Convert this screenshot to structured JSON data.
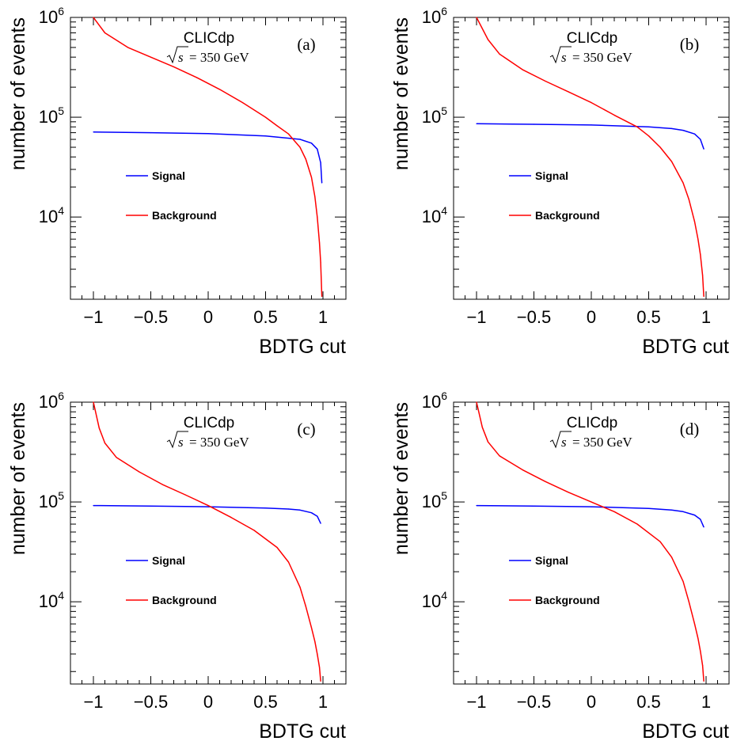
{
  "colors": {
    "signal": "#0000ff",
    "background": "#ff0000",
    "axis": "#000000"
  },
  "chart_data": [
    {
      "type": "line",
      "panel_label": "(a)",
      "experiment": "CLICdp",
      "energy_text": "= 350 GeV",
      "xlabel": "BDTG cut",
      "ylabel": "number of events",
      "xticks": [
        "−1",
        "−0.5",
        "0",
        "0.5",
        "1"
      ],
      "xlim": [
        -1.2,
        1.2
      ],
      "ylim": [
        1500,
        1000000
      ],
      "yscale": "log",
      "legend": [
        "Signal",
        "Background"
      ],
      "series": [
        {
          "name": "Signal",
          "x": [
            -1,
            -0.5,
            0,
            0.5,
            0.8,
            0.9,
            0.95,
            0.98,
            0.99
          ],
          "y": [
            71000,
            70000,
            68500,
            65000,
            60000,
            55000,
            48000,
            35000,
            22000
          ]
        },
        {
          "name": "Background",
          "x": [
            -1,
            -0.9,
            -0.7,
            -0.5,
            -0.3,
            -0.1,
            0.1,
            0.3,
            0.5,
            0.6,
            0.7,
            0.8,
            0.85,
            0.9,
            0.93,
            0.95,
            0.97,
            0.98,
            0.99
          ],
          "y": [
            1000000,
            700000,
            500000,
            400000,
            320000,
            250000,
            190000,
            140000,
            100000,
            82000,
            68000,
            50000,
            38000,
            25000,
            16000,
            10000,
            5500,
            3500,
            1600
          ]
        }
      ]
    },
    {
      "type": "line",
      "panel_label": "(b)",
      "experiment": "CLICdp",
      "energy_text": "= 350 GeV",
      "xlabel": "BDTG cut",
      "ylabel": "number of events",
      "xticks": [
        "−1",
        "−0.5",
        "0",
        "0.5",
        "1"
      ],
      "xlim": [
        -1.2,
        1.2
      ],
      "ylim": [
        1500,
        1000000
      ],
      "yscale": "log",
      "legend": [
        "Signal",
        "Background"
      ],
      "series": [
        {
          "name": "Signal",
          "x": [
            -1,
            -0.5,
            0,
            0.5,
            0.7,
            0.8,
            0.9,
            0.95,
            0.98
          ],
          "y": [
            86000,
            85000,
            83500,
            80000,
            77000,
            74000,
            68000,
            60000,
            48000
          ]
        },
        {
          "name": "Background",
          "x": [
            -1,
            -0.9,
            -0.8,
            -0.6,
            -0.4,
            -0.2,
            0,
            0.2,
            0.4,
            0.5,
            0.6,
            0.7,
            0.8,
            0.85,
            0.9,
            0.93,
            0.95,
            0.97,
            0.98
          ],
          "y": [
            1000000,
            600000,
            430000,
            300000,
            230000,
            180000,
            140000,
            105000,
            80000,
            65000,
            50000,
            36000,
            22000,
            15000,
            9000,
            6000,
            4200,
            2600,
            1600
          ]
        }
      ]
    },
    {
      "type": "line",
      "panel_label": "(c)",
      "experiment": "CLICdp",
      "energy_text": "= 350 GeV",
      "xlabel": "BDTG cut",
      "ylabel": "number of events",
      "xticks": [
        "−1",
        "−0.5",
        "0",
        "0.5",
        "1"
      ],
      "xlim": [
        -1.2,
        1.2
      ],
      "ylim": [
        1500,
        1000000
      ],
      "yscale": "log",
      "legend": [
        "Signal",
        "Background"
      ],
      "series": [
        {
          "name": "Signal",
          "x": [
            -1,
            -0.5,
            0,
            0.5,
            0.7,
            0.8,
            0.9,
            0.95,
            0.98
          ],
          "y": [
            92000,
            91000,
            89500,
            87000,
            85000,
            83000,
            78000,
            72000,
            61000
          ]
        },
        {
          "name": "Background",
          "x": [
            -1,
            -0.95,
            -0.9,
            -0.8,
            -0.6,
            -0.4,
            -0.2,
            0,
            0.2,
            0.4,
            0.6,
            0.7,
            0.8,
            0.85,
            0.9,
            0.93,
            0.95,
            0.97,
            0.98
          ],
          "y": [
            1000000,
            550000,
            390000,
            280000,
            200000,
            150000,
            118000,
            92000,
            70000,
            52000,
            35000,
            25000,
            14000,
            9000,
            5500,
            4000,
            3000,
            2200,
            1600
          ]
        }
      ]
    },
    {
      "type": "line",
      "panel_label": "(d)",
      "experiment": "CLICdp",
      "energy_text": "= 350 GeV",
      "xlabel": "BDTG cut",
      "ylabel": "number of events",
      "xticks": [
        "−1",
        "−0.5",
        "0",
        "0.5",
        "1"
      ],
      "xlim": [
        -1.2,
        1.2
      ],
      "ylim": [
        1500,
        1000000
      ],
      "yscale": "log",
      "legend": [
        "Signal",
        "Background"
      ],
      "series": [
        {
          "name": "Signal",
          "x": [
            -1,
            -0.5,
            0,
            0.5,
            0.7,
            0.8,
            0.9,
            0.95,
            0.98
          ],
          "y": [
            92000,
            91000,
            89500,
            86000,
            83000,
            80000,
            74000,
            67000,
            56000
          ]
        },
        {
          "name": "Background",
          "x": [
            -1,
            -0.95,
            -0.9,
            -0.8,
            -0.6,
            -0.4,
            -0.2,
            0,
            0.2,
            0.4,
            0.6,
            0.7,
            0.8,
            0.85,
            0.9,
            0.93,
            0.95,
            0.97,
            0.98
          ],
          "y": [
            1000000,
            560000,
            400000,
            290000,
            210000,
            160000,
            125000,
            100000,
            80000,
            60000,
            40000,
            28000,
            16000,
            10000,
            6000,
            4300,
            3200,
            2300,
            1600
          ]
        }
      ]
    }
  ]
}
